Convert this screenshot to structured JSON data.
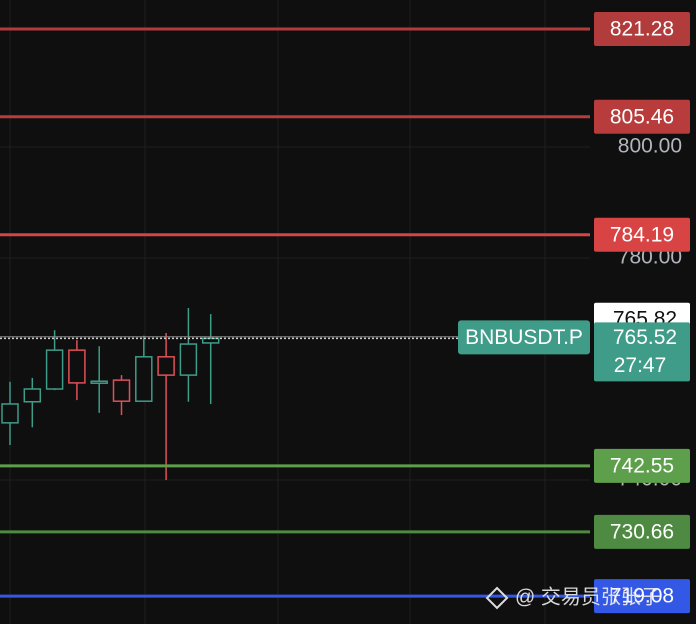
{
  "chart_data": {
    "type": "candlestick",
    "open": [
      750.3,
      754.1,
      756.4,
      763.4,
      757.6,
      758.0,
      754.2,
      762.2,
      758.9,
      764.7
    ],
    "high": [
      757.7,
      758.4,
      767.0,
      765.2,
      764.1,
      758.9,
      766.0,
      766.5,
      771.0,
      769.9
    ],
    "low": [
      746.3,
      749.5,
      756.2,
      754.4,
      752.1,
      751.7,
      754.2,
      740.0,
      754.1,
      753.7
    ],
    "close": [
      753.7,
      756.4,
      763.4,
      757.5,
      757.8,
      754.2,
      762.2,
      758.9,
      764.5,
      765.52
    ],
    "up_color": "#3e9c88",
    "down_color": "#e0505a",
    "ylim": [
      714.05,
      826.5
    ],
    "yticks": [
      {
        "value": 740,
        "label": "740.00"
      },
      {
        "value": 780,
        "label": "780.00"
      },
      {
        "value": 800,
        "label": "800.00"
      }
    ],
    "grid": true,
    "price_lines": [
      {
        "value": 821.28,
        "color": "#b23b3b"
      },
      {
        "value": 805.46,
        "color": "#b83c3c"
      },
      {
        "value": 784.19,
        "color": "#d84444"
      },
      {
        "value": 742.55,
        "color": "#5e9f4c"
      },
      {
        "value": 730.66,
        "color": "#4f8a42"
      },
      {
        "value": 719.08,
        "color": "#3458e6"
      }
    ],
    "crosshair": {
      "value": 765.82
    },
    "last_price": {
      "symbol": "BNBUSDT.P",
      "value": 765.52,
      "countdown": "27:47",
      "color": "#3e9c88"
    },
    "watermark": "@ 交易员张张子"
  }
}
